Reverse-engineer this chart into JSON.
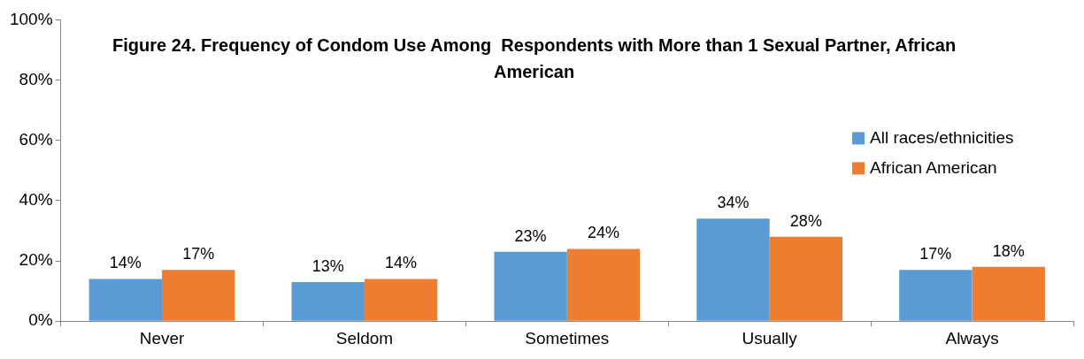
{
  "chart_data": {
    "type": "bar",
    "title": "Figure 24. Frequency of Condom Use Among  Respondents with More than 1 Sexual Partner, African American",
    "categories": [
      "Never",
      "Seldom",
      "Sometimes",
      "Usually",
      "Always"
    ],
    "series": [
      {
        "name": "All races/ethnicities",
        "color": "#5b9bd5",
        "values": [
          14,
          13,
          23,
          34,
          17
        ],
        "value_labels": [
          "14%",
          "13%",
          "23%",
          "34%",
          "17%"
        ]
      },
      {
        "name": "African American",
        "color": "#ed7d31",
        "values": [
          17,
          14,
          24,
          28,
          18
        ],
        "value_labels": [
          "17%",
          "14%",
          "24%",
          "28%",
          "18%"
        ]
      }
    ],
    "ylim": [
      0,
      100
    ],
    "yticks": [
      {
        "value": 0,
        "label": "0%"
      },
      {
        "value": 20,
        "label": "20%"
      },
      {
        "value": 40,
        "label": "40%"
      },
      {
        "value": 60,
        "label": "60%"
      },
      {
        "value": 80,
        "label": "80%"
      },
      {
        "value": 100,
        "label": "100%"
      }
    ],
    "grid": false,
    "legend": "right"
  }
}
